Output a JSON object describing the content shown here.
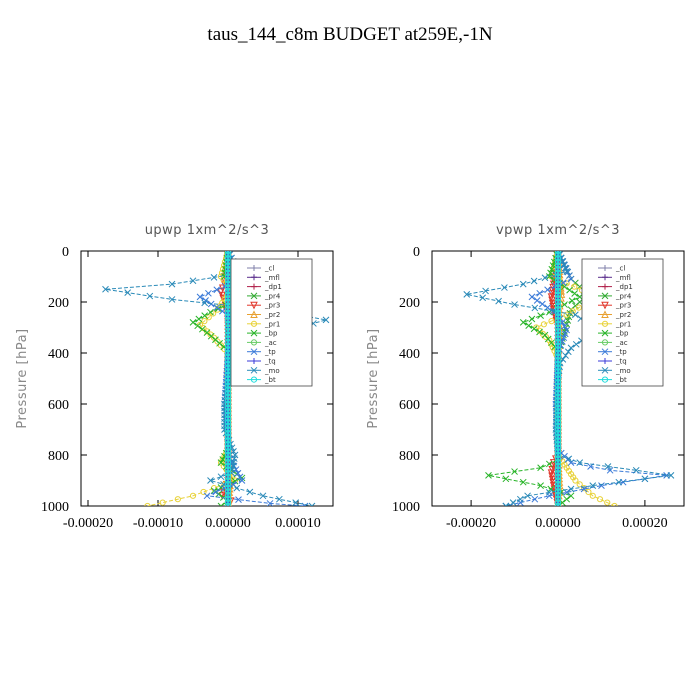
{
  "title": "taus_144_c8m  BUDGET at259E,-1N",
  "chart_data": [
    {
      "type": "line",
      "title": "upwp   1xm^2/s^3",
      "ylabel": "Pressure [hPa]",
      "ylim": [
        1000,
        0
      ],
      "xlim": [
        -0.00021,
        0.00015
      ],
      "xticks": [
        -0.0002,
        -0.0001,
        0.0,
        0.0001
      ],
      "xticklabels": [
        "-0.00020",
        "-0.00010",
        "0.00000",
        "0.00010"
      ],
      "yticks": [
        0,
        200,
        400,
        600,
        800,
        1000
      ],
      "legend_position": "top-right",
      "series": [
        {
          "name": "_cl",
          "color": "#7f7fa8",
          "marker": "+",
          "x": [
            0,
            0,
            0,
            0,
            0,
            0,
            0,
            0,
            0,
            0,
            0
          ],
          "y": [
            0,
            100,
            200,
            300,
            400,
            500,
            600,
            700,
            800,
            900,
            1000
          ]
        },
        {
          "name": "_mfl",
          "color": "#5a2d8c",
          "marker": "+",
          "x": [
            0,
            0,
            0,
            0,
            0,
            0,
            0,
            0,
            0,
            0,
            0
          ],
          "y": [
            0,
            100,
            200,
            300,
            400,
            500,
            600,
            700,
            800,
            900,
            1000
          ]
        },
        {
          "name": "_dp1",
          "color": "#b0204a",
          "marker": "+",
          "x": [
            0,
            2e-06,
            -2e-06,
            0,
            0,
            0,
            0,
            0,
            0,
            2e-06,
            0
          ],
          "y": [
            0,
            100,
            200,
            300,
            400,
            500,
            600,
            700,
            800,
            900,
            1000
          ]
        },
        {
          "name": "_pr4",
          "color": "#33aa33",
          "marker": "x",
          "x": [
            0,
            2e-05,
            4e-05,
            5e-06,
            0,
            0,
            0,
            0,
            0,
            0,
            0
          ],
          "y": [
            0,
            110,
            160,
            220,
            400,
            500,
            600,
            700,
            800,
            900,
            1000
          ]
        },
        {
          "name": "_pr3",
          "color": "#e0362a",
          "marker": "v",
          "x": [
            0,
            -5e-06,
            -1e-05,
            -5e-06,
            0,
            0,
            0,
            0,
            0,
            -8e-06,
            4e-06,
            0
          ],
          "y": [
            0,
            130,
            160,
            200,
            250,
            400,
            600,
            800,
            900,
            960,
            980,
            1000
          ]
        },
        {
          "name": "_pr2",
          "color": "#e8a030",
          "marker": "^",
          "x": [
            0,
            4e-06,
            6e-06,
            2e-06,
            0,
            0,
            0,
            0,
            0,
            3e-06,
            0
          ],
          "y": [
            0,
            120,
            160,
            220,
            400,
            500,
            600,
            700,
            800,
            920,
            1000
          ]
        },
        {
          "name": "_pr1",
          "color": "#e8d23a",
          "marker": "o",
          "x": [
            0,
            -1e-05,
            5e-06,
            -1.5e-05,
            -4e-05,
            -2e-05,
            0,
            0,
            -1e-05,
            1e-05,
            -5e-05,
            -0.000115
          ],
          "y": [
            0,
            100,
            150,
            230,
            290,
            340,
            400,
            780,
            830,
            900,
            960,
            1000
          ]
        },
        {
          "name": "_bp",
          "color": "#28b428",
          "marker": "x",
          "x": [
            0,
            -5e-06,
            3e-05,
            -2.5e-05,
            -5e-05,
            -3e-05,
            0,
            0,
            -1e-05,
            2e-05,
            -2e-05,
            0,
            -1e-05
          ],
          "y": [
            0,
            100,
            170,
            240,
            280,
            320,
            390,
            780,
            830,
            890,
            940,
            980,
            1000
          ]
        },
        {
          "name": "_ac",
          "color": "#66cc66",
          "marker": "o",
          "x": [
            0,
            0,
            0,
            0,
            0,
            0,
            0,
            0,
            0,
            0,
            0
          ],
          "y": [
            0,
            100,
            200,
            300,
            400,
            500,
            600,
            700,
            800,
            900,
            1000
          ]
        },
        {
          "name": "_tp",
          "color": "#3a7ad8",
          "marker": "x",
          "x": [
            0,
            2e-05,
            -4e-05,
            0,
            1e-05,
            0,
            -5e-06,
            0,
            0,
            2e-05,
            -3e-05,
            6e-05,
            0.00011
          ],
          "y": [
            0,
            110,
            180,
            250,
            300,
            400,
            600,
            700,
            800,
            900,
            960,
            990,
            1000
          ]
        },
        {
          "name": "_tq",
          "color": "#3a3ad8",
          "marker": "+",
          "x": [
            0,
            0,
            0,
            0,
            0,
            0,
            0,
            0,
            0,
            0,
            0
          ],
          "y": [
            0,
            100,
            200,
            300,
            400,
            500,
            600,
            700,
            800,
            900,
            1000
          ]
        },
        {
          "name": "_mo",
          "color": "#2a8ab8",
          "marker": "x",
          "x": [
            0,
            1e-05,
            -8e-05,
            -0.000175,
            -8e-05,
            6e-05,
            0.00014,
            5e-05,
            5e-06,
            0,
            -5e-06,
            -5e-06,
            1e-05,
            5e-06,
            -2.5e-05,
            5e-05,
            0.00012
          ],
          "y": [
            0,
            90,
            130,
            150,
            190,
            230,
            270,
            340,
            400,
            500,
            600,
            700,
            800,
            870,
            900,
            960,
            1000
          ]
        },
        {
          "name": "_bt",
          "color": "#22dddd",
          "marker": "o",
          "x": [
            0,
            0,
            0,
            0,
            0,
            0,
            0,
            0,
            0,
            0,
            0
          ],
          "y": [
            0,
            100,
            200,
            300,
            400,
            500,
            600,
            700,
            800,
            900,
            1000
          ]
        }
      ]
    },
    {
      "type": "line",
      "title": "vpwp   1xm^2/s^3",
      "ylabel": "Pressure [hPa]",
      "ylim": [
        1000,
        0
      ],
      "xlim": [
        -0.00029,
        0.00029
      ],
      "xticks": [
        -0.0002,
        0.0,
        0.0002
      ],
      "xticklabels": [
        "-0.00020",
        "0.00000",
        "0.00020"
      ],
      "yticks": [
        0,
        200,
        400,
        600,
        800,
        1000
      ],
      "legend_position": "top-right",
      "series": [
        {
          "name": "_cl",
          "color": "#7f7fa8",
          "marker": "+",
          "x": [
            0,
            0,
            0,
            0,
            0,
            0,
            0,
            0,
            0,
            0,
            0
          ],
          "y": [
            0,
            100,
            200,
            300,
            400,
            500,
            600,
            700,
            800,
            900,
            1000
          ]
        },
        {
          "name": "_mfl",
          "color": "#5a2d8c",
          "marker": "+",
          "x": [
            0,
            0,
            0,
            0,
            0,
            0,
            0,
            0,
            0,
            0,
            0
          ],
          "y": [
            0,
            100,
            200,
            300,
            400,
            500,
            600,
            700,
            800,
            900,
            1000
          ]
        },
        {
          "name": "_dp1",
          "color": "#b0204a",
          "marker": "+",
          "x": [
            0,
            3e-06,
            -3e-06,
            0,
            0,
            0,
            0,
            0,
            3e-06,
            -3e-06,
            0
          ],
          "y": [
            0,
            100,
            200,
            300,
            400,
            500,
            600,
            700,
            850,
            920,
            1000
          ]
        },
        {
          "name": "_pr4",
          "color": "#33aa33",
          "marker": "x",
          "x": [
            0,
            3e-05,
            7e-05,
            3e-05,
            0,
            0,
            0,
            0,
            0,
            0,
            0
          ],
          "y": [
            0,
            110,
            170,
            230,
            400,
            500,
            600,
            700,
            800,
            900,
            1000
          ]
        },
        {
          "name": "_pr3",
          "color": "#e0362a",
          "marker": "v",
          "x": [
            0,
            -1e-05,
            -1.5e-05,
            -1e-05,
            0,
            0,
            0,
            -1e-05,
            -1.5e-05,
            -1e-05,
            0
          ],
          "y": [
            0,
            130,
            180,
            230,
            300,
            500,
            800,
            830,
            870,
            920,
            1000
          ]
        },
        {
          "name": "_pr2",
          "color": "#e8a030",
          "marker": "^",
          "x": [
            0,
            5e-06,
            8e-06,
            3e-06,
            0,
            0,
            0,
            0,
            0,
            4e-06,
            0
          ],
          "y": [
            0,
            120,
            170,
            230,
            400,
            500,
            600,
            700,
            800,
            920,
            1000
          ]
        },
        {
          "name": "_pr1",
          "color": "#e8d23a",
          "marker": "o",
          "x": [
            0,
            -1.5e-05,
            9e-05,
            2e-05,
            -5e-05,
            -2e-05,
            0,
            0,
            2e-05,
            4e-05,
            8e-05,
            0.00013
          ],
          "y": [
            0,
            100,
            180,
            250,
            300,
            350,
            420,
            800,
            850,
            900,
            960,
            1000
          ]
        },
        {
          "name": "_bp",
          "color": "#28b428",
          "marker": "x",
          "x": [
            0,
            -2e-05,
            5e-05,
            -2e-05,
            -8e-05,
            -3e-05,
            0,
            0,
            -4e-05,
            -0.00016,
            -4e-05,
            3e-05,
            0
          ],
          "y": [
            0,
            100,
            180,
            240,
            280,
            330,
            390,
            820,
            850,
            880,
            920,
            960,
            1000
          ]
        },
        {
          "name": "_ac",
          "color": "#66cc66",
          "marker": "o",
          "x": [
            0,
            0,
            0,
            0,
            0,
            0,
            0,
            0,
            0,
            0,
            0
          ],
          "y": [
            0,
            100,
            200,
            300,
            400,
            500,
            600,
            700,
            800,
            900,
            1000
          ]
        },
        {
          "name": "_tp",
          "color": "#3a7ad8",
          "marker": "x",
          "x": [
            0,
            3e-05,
            -6e-05,
            0,
            2e-05,
            0,
            -5e-06,
            0,
            3e-05,
            0.00012,
            0.00025,
            0.0001,
            -2e-05,
            -0.00012
          ],
          "y": [
            0,
            110,
            180,
            250,
            310,
            400,
            600,
            780,
            830,
            860,
            880,
            920,
            960,
            1000
          ]
        },
        {
          "name": "_tq",
          "color": "#3a3ad8",
          "marker": "+",
          "x": [
            0,
            0,
            0,
            0,
            0,
            0,
            0,
            0,
            0,
            0,
            0
          ],
          "y": [
            0,
            100,
            200,
            300,
            400,
            500,
            600,
            700,
            800,
            900,
            1000
          ]
        },
        {
          "name": "_mo",
          "color": "#2a8ab8",
          "marker": "x",
          "x": [
            0,
            2e-05,
            -8e-05,
            -0.00021,
            -0.0001,
            4e-05,
            9e-05,
            3e-05,
            5e-06,
            0,
            -5e-06,
            0,
            5e-05,
            0.00018,
            0.00026,
            8e-05,
            -7e-05,
            -0.00012
          ],
          "y": [
            0,
            80,
            130,
            170,
            210,
            250,
            310,
            380,
            440,
            500,
            700,
            800,
            830,
            860,
            880,
            920,
            960,
            1000
          ]
        },
        {
          "name": "_bt",
          "color": "#22dddd",
          "marker": "o",
          "x": [
            0,
            0,
            0,
            0,
            0,
            0,
            0,
            0,
            0,
            0,
            0
          ],
          "y": [
            0,
            100,
            200,
            300,
            400,
            500,
            600,
            700,
            800,
            900,
            1000
          ]
        }
      ]
    }
  ]
}
